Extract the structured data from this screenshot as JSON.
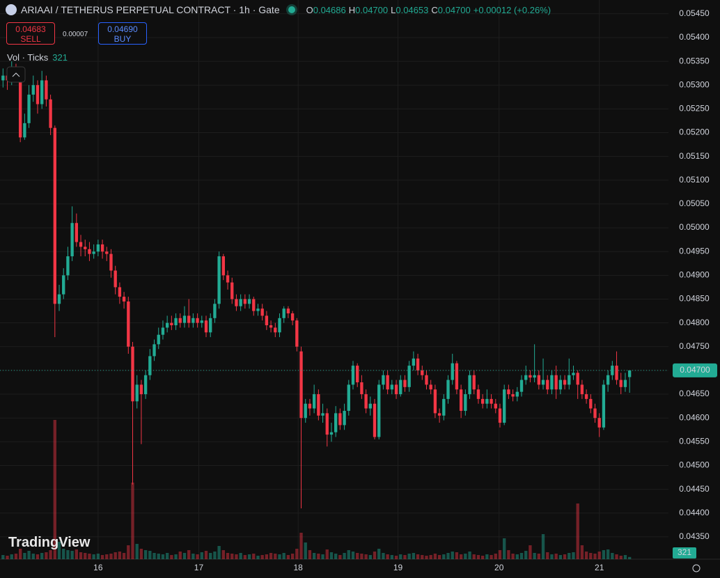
{
  "chart_data": {
    "type": "candlestick",
    "title": "ARIAAI / TETHERUS PERPETUAL CONTRACT · 1h · Gate",
    "ohlc_legend": [
      {
        "label": "O",
        "value": "0.04686"
      },
      {
        "label": "H",
        "value": "0.04700"
      },
      {
        "label": "L",
        "value": "0.04653"
      },
      {
        "label": "C",
        "value": "0.04700"
      }
    ],
    "change": "+0.00012 (+0.26%)",
    "sell": {
      "price": "0.04683",
      "label": "SELL"
    },
    "spread": "0.00007",
    "buy": {
      "price": "0.04690",
      "label": "BUY"
    },
    "volume_title": "Vol · Ticks",
    "watermark": "TradingView",
    "up_color": "#22ab94",
    "down_color": "#f23645",
    "grid": true,
    "open": [
      0.0531,
      0.0532,
      0.0531,
      0.0533,
      0.0532,
      0.0519,
      0.0522,
      0.0528,
      0.053,
      0.0526,
      0.0531,
      0.0527,
      0.0521,
      0.0484,
      0.0486,
      0.049,
      0.0494,
      0.0501,
      0.0497,
      0.0496,
      0.04955,
      0.04945,
      0.0495,
      0.04965,
      0.0495,
      0.04945,
      0.0491,
      0.04875,
      0.04855,
      0.04845,
      0.0475,
      0.04635,
      0.0467,
      0.0465,
      0.0469,
      0.0473,
      0.04755,
      0.04775,
      0.0479,
      0.048,
      0.04795,
      0.0481,
      0.048,
      0.04815,
      0.048,
      0.0481,
      0.048,
      0.04805,
      0.0478,
      0.0481,
      0.0484,
      0.0494,
      0.049,
      0.04885,
      0.0485,
      0.04835,
      0.0485,
      0.0484,
      0.0485,
      0.04825,
      0.0483,
      0.04815,
      0.04795,
      0.0479,
      0.0478,
      0.0481,
      0.0483,
      0.0482,
      0.04805,
      0.0474,
      0.046,
      0.0463,
      0.0462,
      0.0465,
      0.04605,
      0.0461,
      0.04565,
      0.0457,
      0.0461,
      0.04585,
      0.04615,
      0.0467,
      0.0471,
      0.04675,
      0.0465,
      0.0462,
      0.0463,
      0.0456,
      0.0467,
      0.0469,
      0.0466,
      0.0467,
      0.0465,
      0.0468,
      0.04665,
      0.0471,
      0.04725,
      0.047,
      0.0469,
      0.0467,
      0.0466,
      0.0461,
      0.04605,
      0.0464,
      0.0468,
      0.04715,
      0.0466,
      0.04615,
      0.0465,
      0.0469,
      0.0466,
      0.0464,
      0.0463,
      0.0464,
      0.0463,
      0.0462,
      0.0459,
      0.0466,
      0.0465,
      0.04645,
      0.04655,
      0.0468,
      0.0469,
      0.04685,
      0.0469,
      0.0467,
      0.0468,
      0.0466,
      0.0469,
      0.0466,
      0.0468,
      0.0467,
      0.0469,
      0.04695,
      0.0467,
      0.0465,
      0.0464,
      0.0462,
      0.046,
      0.0458,
      0.0467,
      0.0469,
      0.0471,
      0.0468,
      0.04665,
      0.04686
    ],
    "high": [
      0.05335,
      0.0533,
      0.0535,
      0.05345,
      0.0533,
      0.0524,
      0.053,
      0.0532,
      0.0531,
      0.0533,
      0.0532,
      0.0528,
      0.05215,
      0.0488,
      0.04915,
      0.0496,
      0.05045,
      0.0503,
      0.04985,
      0.04975,
      0.0497,
      0.04965,
      0.04975,
      0.04975,
      0.0496,
      0.04955,
      0.0492,
      0.04885,
      0.04865,
      0.04855,
      0.0476,
      0.0469,
      0.0468,
      0.047,
      0.04745,
      0.04765,
      0.0479,
      0.04805,
      0.04815,
      0.04815,
      0.0482,
      0.0482,
      0.04835,
      0.0485,
      0.0482,
      0.0482,
      0.04815,
      0.04815,
      0.0482,
      0.0485,
      0.0495,
      0.04945,
      0.0491,
      0.04895,
      0.0486,
      0.0486,
      0.0486,
      0.0486,
      0.04855,
      0.0484,
      0.0484,
      0.04825,
      0.04805,
      0.048,
      0.0482,
      0.04835,
      0.04835,
      0.04825,
      0.0481,
      0.0475,
      0.0464,
      0.0464,
      0.0467,
      0.0466,
      0.0463,
      0.0462,
      0.0459,
      0.04625,
      0.0462,
      0.0463,
      0.0468,
      0.0472,
      0.04715,
      0.0469,
      0.0466,
      0.04645,
      0.0464,
      0.0468,
      0.047,
      0.047,
      0.0468,
      0.0468,
      0.0469,
      0.0469,
      0.0472,
      0.0474,
      0.04735,
      0.0471,
      0.047,
      0.0468,
      0.0467,
      0.0462,
      0.0465,
      0.0469,
      0.04735,
      0.0472,
      0.0467,
      0.0466,
      0.047,
      0.047,
      0.0467,
      0.0465,
      0.0466,
      0.0465,
      0.0464,
      0.0463,
      0.0467,
      0.0467,
      0.0466,
      0.04665,
      0.0469,
      0.0471,
      0.047,
      0.04755,
      0.047,
      0.04725,
      0.0469,
      0.047,
      0.0471,
      0.0469,
      0.0469,
      0.04725,
      0.0471,
      0.047,
      0.0468,
      0.0466,
      0.0465,
      0.0463,
      0.0461,
      0.0468,
      0.047,
      0.0472,
      0.0474,
      0.04695,
      0.04695,
      0.047
    ],
    "low": [
      0.05295,
      0.0529,
      0.053,
      0.0531,
      0.0518,
      0.05185,
      0.0521,
      0.05265,
      0.0524,
      0.0525,
      0.05255,
      0.05195,
      0.0477,
      0.04825,
      0.0485,
      0.0489,
      0.0493,
      0.0496,
      0.0494,
      0.0494,
      0.0493,
      0.04935,
      0.0494,
      0.04935,
      0.0493,
      0.04895,
      0.0486,
      0.0484,
      0.0483,
      0.04735,
      0.0446,
      0.0462,
      0.04545,
      0.0464,
      0.0468,
      0.0472,
      0.04745,
      0.04765,
      0.0478,
      0.04785,
      0.04785,
      0.0479,
      0.0479,
      0.0479,
      0.0479,
      0.0479,
      0.0479,
      0.0477,
      0.0477,
      0.048,
      0.0483,
      0.0489,
      0.0487,
      0.0484,
      0.04825,
      0.04825,
      0.0483,
      0.0483,
      0.04815,
      0.04815,
      0.04805,
      0.04785,
      0.0478,
      0.0477,
      0.0477,
      0.048,
      0.0481,
      0.04795,
      0.0474,
      0.0441,
      0.0459,
      0.04605,
      0.0461,
      0.04595,
      0.0459,
      0.0454,
      0.0455,
      0.0456,
      0.04575,
      0.04575,
      0.04605,
      0.0466,
      0.04665,
      0.0464,
      0.0461,
      0.04605,
      0.04555,
      0.04555,
      0.0466,
      0.0465,
      0.0465,
      0.0464,
      0.04645,
      0.04655,
      0.04655,
      0.047,
      0.0469,
      0.0468,
      0.0466,
      0.0465,
      0.046,
      0.0459,
      0.04595,
      0.0463,
      0.0467,
      0.0465,
      0.046,
      0.04605,
      0.0464,
      0.0465,
      0.0463,
      0.0462,
      0.0462,
      0.0462,
      0.0461,
      0.0458,
      0.04585,
      0.0464,
      0.04635,
      0.04635,
      0.04645,
      0.0467,
      0.04675,
      0.04675,
      0.0466,
      0.0466,
      0.0465,
      0.0465,
      0.0464,
      0.0465,
      0.0466,
      0.0466,
      0.0468,
      0.0464,
      0.0464,
      0.0463,
      0.0461,
      0.0459,
      0.0456,
      0.04575,
      0.04655,
      0.0468,
      0.0467,
      0.0465,
      0.04655,
      0.04653
    ],
    "close": [
      0.0532,
      0.0531,
      0.0533,
      0.0532,
      0.0519,
      0.0522,
      0.0528,
      0.053,
      0.0526,
      0.0531,
      0.0527,
      0.0521,
      0.0484,
      0.0486,
      0.049,
      0.0494,
      0.0501,
      0.0497,
      0.0496,
      0.04955,
      0.04945,
      0.0495,
      0.04965,
      0.0495,
      0.04945,
      0.0491,
      0.04875,
      0.04855,
      0.04845,
      0.0475,
      0.04635,
      0.0467,
      0.0465,
      0.0469,
      0.0473,
      0.04755,
      0.04775,
      0.0479,
      0.048,
      0.04795,
      0.0481,
      0.048,
      0.04815,
      0.048,
      0.0481,
      0.048,
      0.04805,
      0.0478,
      0.0481,
      0.0484,
      0.0494,
      0.049,
      0.04885,
      0.0485,
      0.04835,
      0.0485,
      0.0484,
      0.0485,
      0.04825,
      0.0483,
      0.04815,
      0.04795,
      0.0479,
      0.0478,
      0.0481,
      0.0483,
      0.0482,
      0.04805,
      0.0475,
      0.046,
      0.0463,
      0.0462,
      0.0465,
      0.04605,
      0.0461,
      0.04565,
      0.0457,
      0.0461,
      0.04585,
      0.04615,
      0.0467,
      0.0471,
      0.04675,
      0.0465,
      0.0462,
      0.0463,
      0.0456,
      0.0467,
      0.0469,
      0.0466,
      0.0467,
      0.0465,
      0.0468,
      0.04665,
      0.0471,
      0.04725,
      0.047,
      0.0469,
      0.0467,
      0.0466,
      0.0461,
      0.04605,
      0.0464,
      0.0468,
      0.04715,
      0.0466,
      0.04615,
      0.0465,
      0.0469,
      0.0466,
      0.0464,
      0.0463,
      0.0464,
      0.0463,
      0.0462,
      0.0459,
      0.0466,
      0.0465,
      0.04645,
      0.04655,
      0.0468,
      0.0469,
      0.04685,
      0.0469,
      0.0467,
      0.0468,
      0.0466,
      0.0469,
      0.0466,
      0.0468,
      0.0467,
      0.0469,
      0.04695,
      0.0467,
      0.0465,
      0.0464,
      0.0462,
      0.046,
      0.0458,
      0.0467,
      0.0469,
      0.0471,
      0.0468,
      0.04665,
      0.0468,
      0.047
    ],
    "volume": [
      600,
      500,
      700,
      800,
      1500,
      900,
      1200,
      800,
      700,
      900,
      1000,
      1300,
      20000,
      2500,
      1500,
      1300,
      1200,
      1400,
      1000,
      900,
      800,
      700,
      800,
      600,
      700,
      800,
      1000,
      1100,
      900,
      2000,
      11000,
      2200,
      1500,
      1300,
      1200,
      900,
      800,
      700,
      900,
      600,
      700,
      1100,
      900,
      1300,
      800,
      700,
      1000,
      1200,
      900,
      1100,
      1900,
      1300,
      900,
      800,
      700,
      900,
      600,
      700,
      800,
      500,
      600,
      700,
      900,
      800,
      700,
      900,
      600,
      800,
      1500,
      3800,
      2400,
      1300,
      900,
      800,
      700,
      1400,
      1000,
      800,
      600,
      900,
      1300,
      1100,
      900,
      800,
      700,
      600,
      1100,
      1500,
      900,
      700,
      600,
      500,
      700,
      600,
      800,
      900,
      700,
      600,
      500,
      600,
      800,
      600,
      700,
      900,
      1100,
      1000,
      700,
      800,
      1100,
      700,
      600,
      500,
      700,
      600,
      800,
      1300,
      3000,
      1300,
      800,
      700,
      900,
      1200,
      2000,
      900,
      800,
      3600,
      1000,
      700,
      800,
      600,
      700,
      900,
      1000,
      8000,
      2000,
      1100,
      900,
      800,
      1100,
      1300,
      1400,
      900,
      700,
      500,
      600,
      321
    ],
    "xlim": [
      -0.7,
      154
    ],
    "xticks": [
      {
        "value": 22,
        "label": "16"
      },
      {
        "value": 45.3,
        "label": "17"
      },
      {
        "value": 68.3,
        "label": "18"
      },
      {
        "value": 91.4,
        "label": "19"
      },
      {
        "value": 114.8,
        "label": "20"
      },
      {
        "value": 138,
        "label": "21"
      }
    ],
    "ylim": [
      0.04303,
      0.05479
    ],
    "yticks": [
      {
        "value": 0.0545,
        "label": "0.05450"
      },
      {
        "value": 0.054,
        "label": "0.05400"
      },
      {
        "value": 0.0535,
        "label": "0.05350"
      },
      {
        "value": 0.053,
        "label": "0.05300"
      },
      {
        "value": 0.0525,
        "label": "0.05250"
      },
      {
        "value": 0.052,
        "label": "0.05200"
      },
      {
        "value": 0.0515,
        "label": "0.05150"
      },
      {
        "value": 0.051,
        "label": "0.05100"
      },
      {
        "value": 0.0505,
        "label": "0.05050"
      },
      {
        "value": 0.05,
        "label": "0.05000"
      },
      {
        "value": 0.0495,
        "label": "0.04950"
      },
      {
        "value": 0.049,
        "label": "0.04900"
      },
      {
        "value": 0.0485,
        "label": "0.04850"
      },
      {
        "value": 0.048,
        "label": "0.04800"
      },
      {
        "value": 0.0475,
        "label": "0.04750"
      },
      {
        "value": 0.047,
        "label": "0.04700"
      },
      {
        "value": 0.0465,
        "label": "0.04650"
      },
      {
        "value": 0.046,
        "label": "0.04600"
      },
      {
        "value": 0.0455,
        "label": "0.04550"
      },
      {
        "value": 0.045,
        "label": "0.04500"
      },
      {
        "value": 0.0445,
        "label": "0.04450"
      },
      {
        "value": 0.044,
        "label": "0.04400"
      },
      {
        "value": 0.0435,
        "label": "0.04350"
      }
    ],
    "last_price": {
      "value": 0.047,
      "label": "0.04700"
    }
  }
}
